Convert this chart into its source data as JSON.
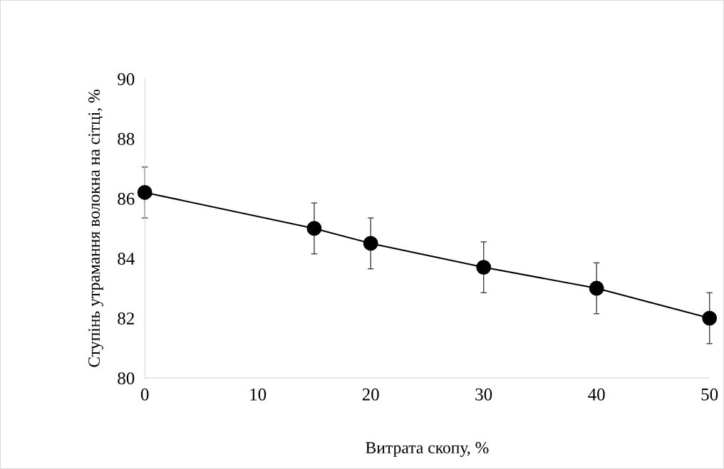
{
  "chart_data": {
    "type": "line",
    "xlabel": "Витрата скопу, %",
    "ylabel": "Ступінь утрамання волокна на сітці, %",
    "x": [
      0,
      15,
      20,
      30,
      40,
      50
    ],
    "series": [
      {
        "color": "#000000",
        "values": [
          86.2,
          85.0,
          84.5,
          83.7,
          83.0,
          82.0
        ],
        "errors": [
          0.85,
          0.85,
          0.85,
          0.85,
          0.85,
          0.85
        ]
      }
    ],
    "xlim": [
      0,
      50
    ],
    "xticks": [
      0,
      10,
      20,
      30,
      40,
      50
    ],
    "ylim": [
      80,
      90
    ],
    "yticks": [
      80,
      82,
      84,
      86,
      88,
      90
    ],
    "grid": false,
    "legend": false,
    "marker": "circle",
    "line_style": "solid"
  }
}
